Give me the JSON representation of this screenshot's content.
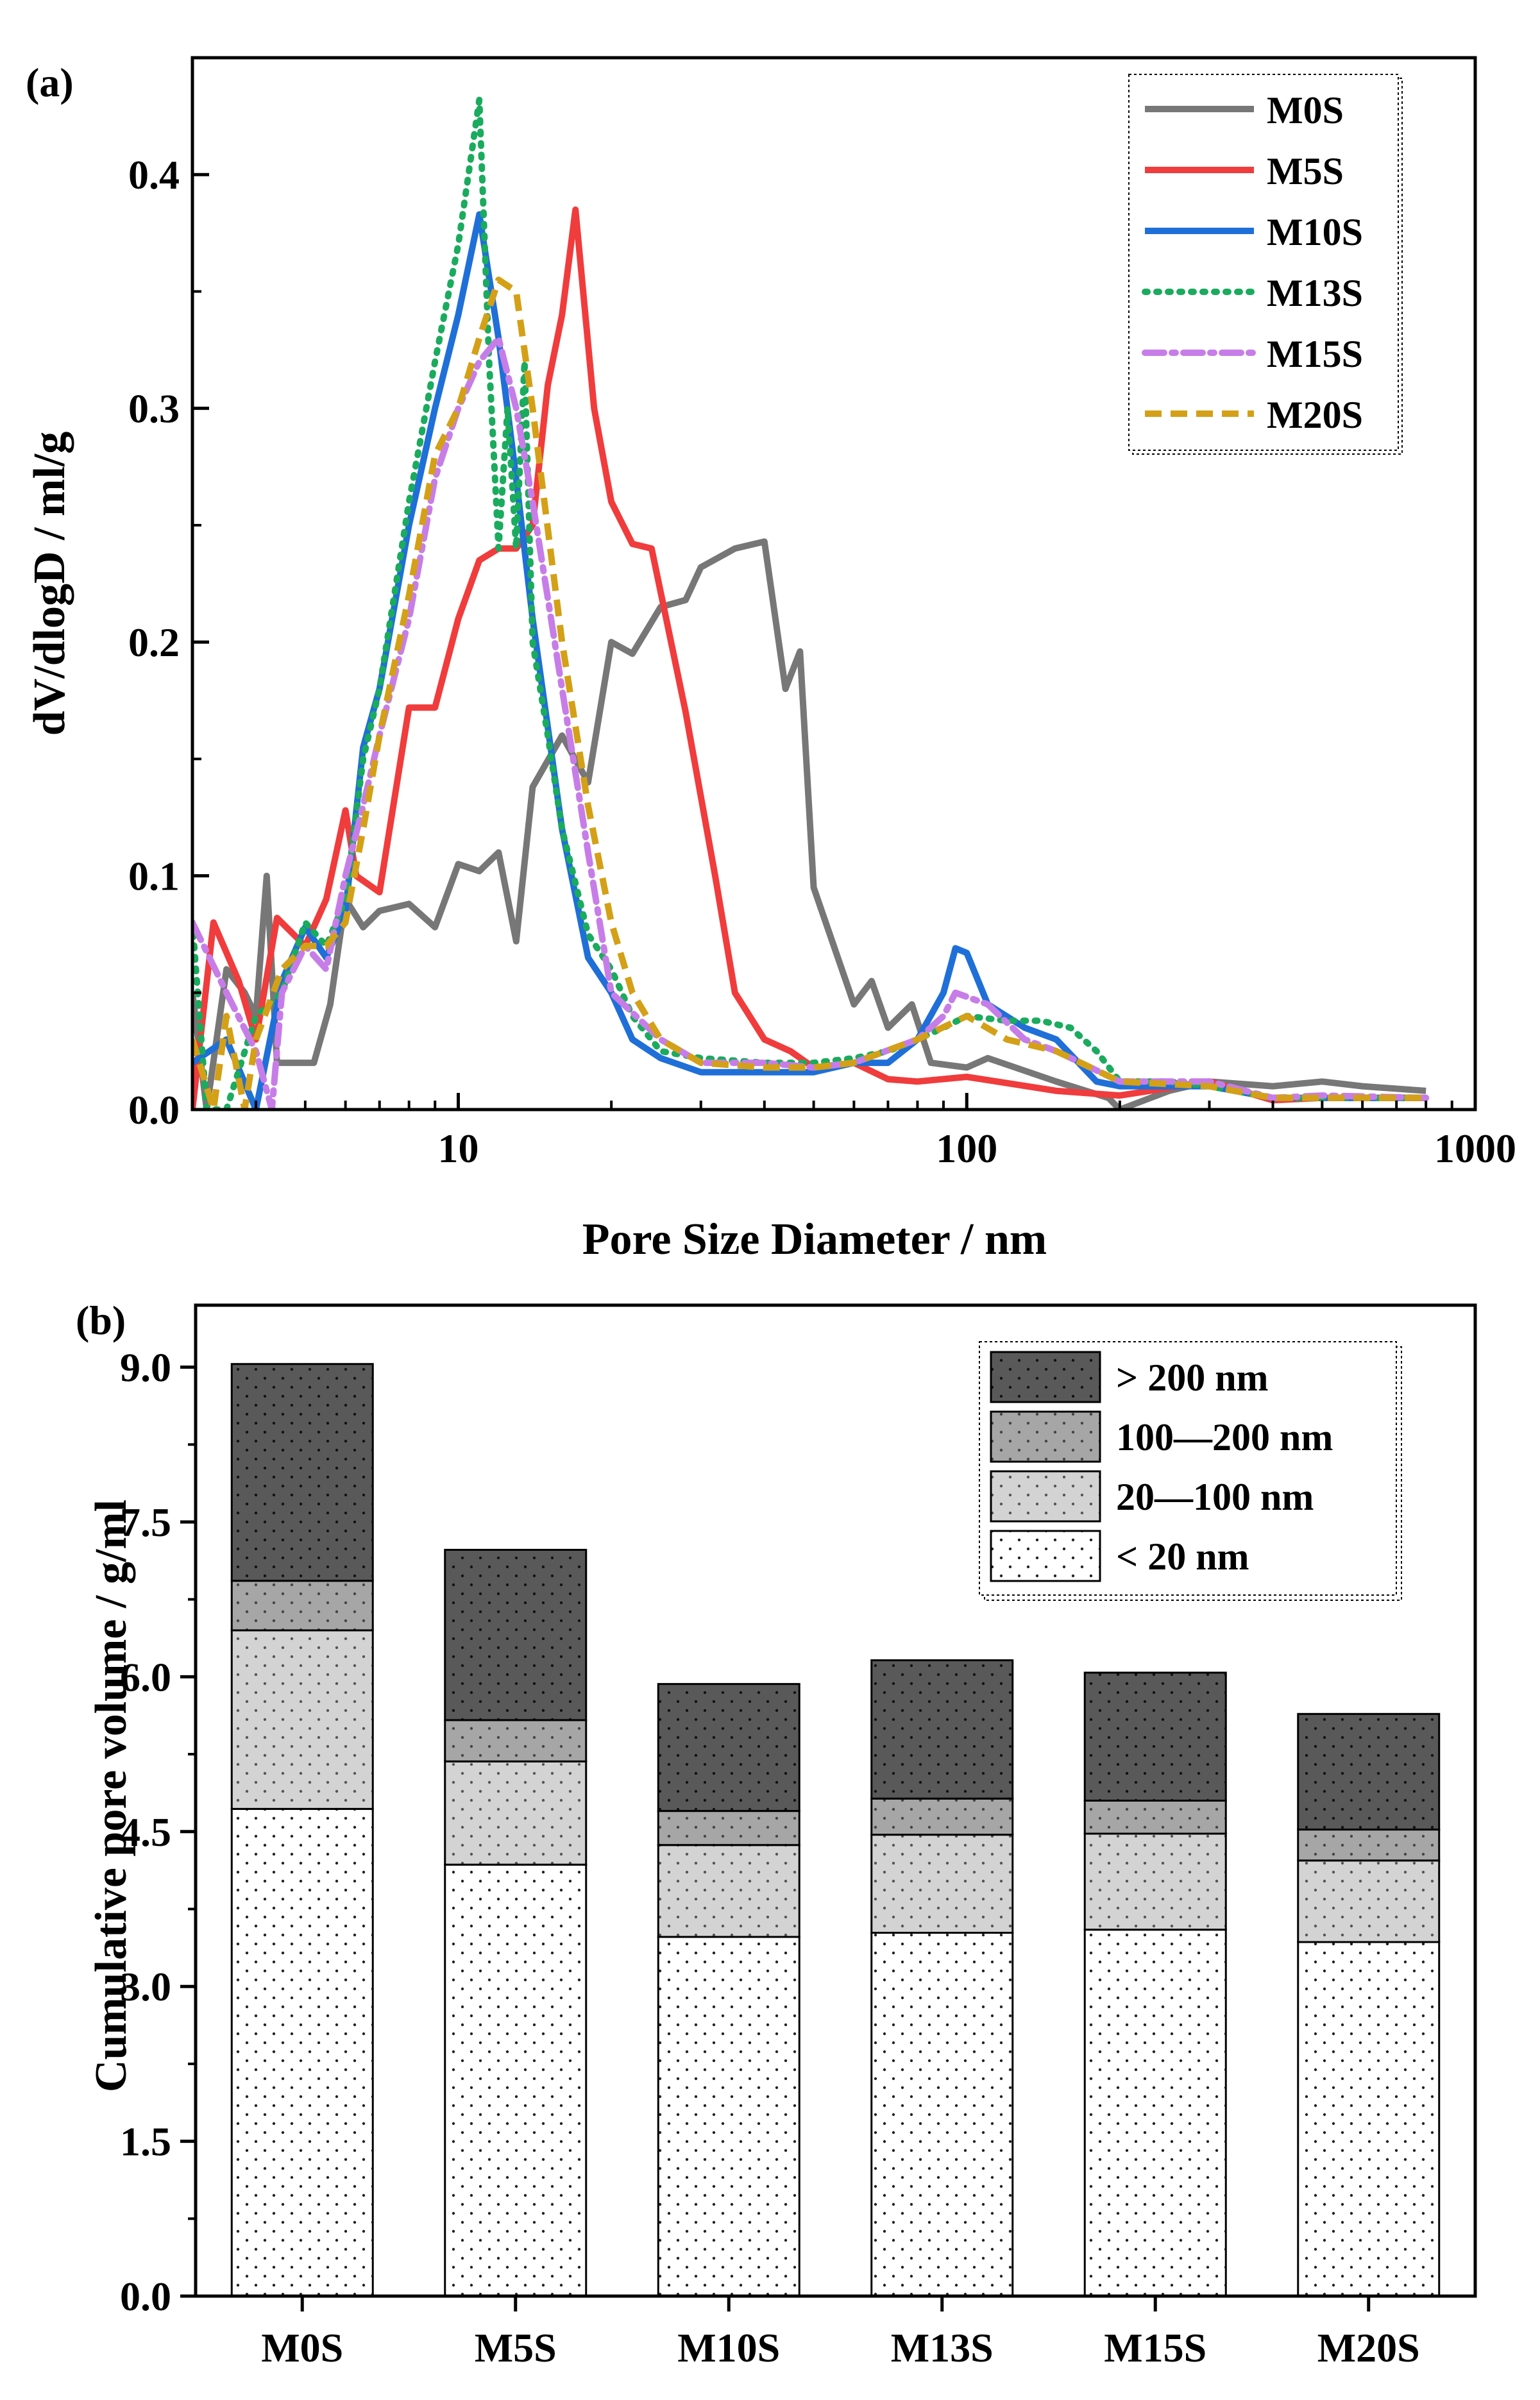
{
  "chart_data": [
    {
      "type": "line",
      "panel_label": "(a)",
      "xscale": "log",
      "xlabel": "Pore Size Diameter / nm",
      "ylabel": "dV/dlogD / ml/g",
      "xlim": [
        3,
        1000
      ],
      "ylim": [
        0,
        0.45
      ],
      "xticks": [
        10,
        100,
        1000
      ],
      "xtick_labels": [
        "10",
        "100",
        "1000"
      ],
      "yticks": [
        0,
        0.1,
        0.2,
        0.3,
        0.4
      ],
      "ytick_labels": [
        "0.0",
        "0.1",
        "0.2",
        "0.3",
        "0.4"
      ],
      "legend_position": "top-right",
      "series": [
        {
          "name": "M0S",
          "color": "#777777",
          "dash": "solid",
          "points": [
            [
              3.0,
              0.05
            ],
            [
              3.2,
              0.0
            ],
            [
              3.5,
              0.06
            ],
            [
              3.8,
              0.05
            ],
            [
              4.0,
              0.04
            ],
            [
              4.2,
              0.1
            ],
            [
              4.4,
              0.02
            ],
            [
              4.8,
              0.02
            ],
            [
              5.2,
              0.02
            ],
            [
              5.6,
              0.045
            ],
            [
              6.0,
              0.09
            ],
            [
              6.5,
              0.078
            ],
            [
              7.0,
              0.085
            ],
            [
              8.0,
              0.088
            ],
            [
              9.0,
              0.078
            ],
            [
              10.0,
              0.105
            ],
            [
              11.0,
              0.102
            ],
            [
              12.0,
              0.11
            ],
            [
              13.0,
              0.072
            ],
            [
              14.0,
              0.138
            ],
            [
              16.0,
              0.16
            ],
            [
              18.0,
              0.14
            ],
            [
              20.0,
              0.2
            ],
            [
              22.0,
              0.195
            ],
            [
              25.0,
              0.215
            ],
            [
              28.0,
              0.218
            ],
            [
              30.0,
              0.232
            ],
            [
              35.0,
              0.24
            ],
            [
              40.0,
              0.243
            ],
            [
              44.0,
              0.18
            ],
            [
              47.0,
              0.196
            ],
            [
              50.0,
              0.095
            ],
            [
              60.0,
              0.045
            ],
            [
              65.0,
              0.055
            ],
            [
              70.0,
              0.035
            ],
            [
              78.0,
              0.045
            ],
            [
              85.0,
              0.02
            ],
            [
              100.0,
              0.018
            ],
            [
              110.0,
              0.022
            ],
            [
              150.0,
              0.012
            ],
            [
              190.0,
              0.005
            ],
            [
              200.0,
              0.0
            ],
            [
              250.0,
              0.008
            ],
            [
              300.0,
              0.012
            ],
            [
              400.0,
              0.01
            ],
            [
              500.0,
              0.012
            ],
            [
              600.0,
              0.01
            ],
            [
              800.0,
              0.008
            ]
          ]
        },
        {
          "name": "M5S",
          "color": "#f03c3c",
          "dash": "solid",
          "points": [
            [
              3.0,
              0.0
            ],
            [
              3.3,
              0.08
            ],
            [
              3.7,
              0.055
            ],
            [
              4.0,
              0.03
            ],
            [
              4.4,
              0.082
            ],
            [
              5.0,
              0.07
            ],
            [
              5.5,
              0.09
            ],
            [
              6.0,
              0.128
            ],
            [
              6.3,
              0.1
            ],
            [
              7.0,
              0.093
            ],
            [
              8.0,
              0.172
            ],
            [
              9.0,
              0.172
            ],
            [
              10.0,
              0.21
            ],
            [
              11.0,
              0.235
            ],
            [
              12.0,
              0.24
            ],
            [
              13.0,
              0.24
            ],
            [
              14.0,
              0.25
            ],
            [
              15.0,
              0.31
            ],
            [
              16.0,
              0.34
            ],
            [
              17.0,
              0.385
            ],
            [
              18.5,
              0.3
            ],
            [
              20.0,
              0.26
            ],
            [
              22.0,
              0.242
            ],
            [
              24.0,
              0.24
            ],
            [
              28.0,
              0.17
            ],
            [
              32.0,
              0.1
            ],
            [
              35.0,
              0.05
            ],
            [
              40.0,
              0.03
            ],
            [
              45.0,
              0.025
            ],
            [
              50.0,
              0.018
            ],
            [
              60.0,
              0.02
            ],
            [
              70.0,
              0.013
            ],
            [
              80.0,
              0.012
            ],
            [
              100.0,
              0.014
            ],
            [
              150.0,
              0.008
            ],
            [
              200.0,
              0.006
            ],
            [
              300.0,
              0.012
            ],
            [
              400.0,
              0.004
            ],
            [
              500.0,
              0.005
            ],
            [
              800.0,
              0.005
            ]
          ]
        },
        {
          "name": "M10S",
          "color": "#1f6fd8",
          "dash": "solid",
          "points": [
            [
              3.0,
              0.02
            ],
            [
              3.5,
              0.03
            ],
            [
              4.0,
              0.0
            ],
            [
              4.5,
              0.055
            ],
            [
              5.0,
              0.078
            ],
            [
              5.5,
              0.065
            ],
            [
              6.0,
              0.085
            ],
            [
              6.5,
              0.155
            ],
            [
              7.0,
              0.18
            ],
            [
              8.0,
              0.25
            ],
            [
              9.0,
              0.3
            ],
            [
              10.0,
              0.34
            ],
            [
              11.0,
              0.383
            ],
            [
              12.0,
              0.33
            ],
            [
              13.0,
              0.27
            ],
            [
              14.0,
              0.21
            ],
            [
              16.0,
              0.12
            ],
            [
              18.0,
              0.065
            ],
            [
              20.0,
              0.05
            ],
            [
              22.0,
              0.03
            ],
            [
              25.0,
              0.022
            ],
            [
              30.0,
              0.016
            ],
            [
              40.0,
              0.016
            ],
            [
              50.0,
              0.016
            ],
            [
              60.0,
              0.02
            ],
            [
              70.0,
              0.02
            ],
            [
              80.0,
              0.03
            ],
            [
              90.0,
              0.05
            ],
            [
              95.0,
              0.069
            ],
            [
              100.0,
              0.067
            ],
            [
              110.0,
              0.045
            ],
            [
              130.0,
              0.035
            ],
            [
              150.0,
              0.03
            ],
            [
              180.0,
              0.012
            ],
            [
              200.0,
              0.01
            ],
            [
              300.0,
              0.01
            ],
            [
              400.0,
              0.005
            ],
            [
              500.0,
              0.005
            ],
            [
              800.0,
              0.005
            ]
          ]
        },
        {
          "name": "M13S",
          "color": "#1aab5e",
          "dash": "dot",
          "points": [
            [
              3.0,
              0.08
            ],
            [
              3.2,
              0.0
            ],
            [
              3.5,
              0.0
            ],
            [
              4.0,
              0.04
            ],
            [
              4.5,
              0.05
            ],
            [
              5.0,
              0.08
            ],
            [
              5.5,
              0.07
            ],
            [
              6.0,
              0.09
            ],
            [
              6.5,
              0.15
            ],
            [
              7.0,
              0.18
            ],
            [
              8.0,
              0.26
            ],
            [
              9.0,
              0.32
            ],
            [
              10.0,
              0.37
            ],
            [
              11.0,
              0.432
            ],
            [
              11.5,
              0.32
            ],
            [
              12.0,
              0.24
            ],
            [
              12.5,
              0.3
            ],
            [
              13.0,
              0.24
            ],
            [
              13.5,
              0.32
            ],
            [
              14.0,
              0.2
            ],
            [
              15.0,
              0.16
            ],
            [
              16.0,
              0.12
            ],
            [
              18.0,
              0.075
            ],
            [
              20.0,
              0.06
            ],
            [
              22.0,
              0.04
            ],
            [
              25.0,
              0.025
            ],
            [
              30.0,
              0.022
            ],
            [
              40.0,
              0.02
            ],
            [
              50.0,
              0.02
            ],
            [
              60.0,
              0.022
            ],
            [
              70.0,
              0.025
            ],
            [
              80.0,
              0.03
            ],
            [
              90.0,
              0.035
            ],
            [
              100.0,
              0.04
            ],
            [
              120.0,
              0.038
            ],
            [
              140.0,
              0.038
            ],
            [
              160.0,
              0.035
            ],
            [
              180.0,
              0.025
            ],
            [
              200.0,
              0.012
            ],
            [
              250.0,
              0.012
            ],
            [
              300.0,
              0.01
            ],
            [
              400.0,
              0.005
            ],
            [
              500.0,
              0.005
            ],
            [
              800.0,
              0.005
            ]
          ]
        },
        {
          "name": "M15S",
          "color": "#c77de8",
          "dash": "dashdot",
          "points": [
            [
              3.0,
              0.08
            ],
            [
              3.5,
              0.05
            ],
            [
              4.0,
              0.025
            ],
            [
              4.3,
              0.0
            ],
            [
              4.5,
              0.05
            ],
            [
              5.0,
              0.07
            ],
            [
              5.5,
              0.06
            ],
            [
              6.0,
              0.1
            ],
            [
              6.5,
              0.13
            ],
            [
              7.0,
              0.16
            ],
            [
              8.0,
              0.21
            ],
            [
              9.0,
              0.27
            ],
            [
              10.0,
              0.3
            ],
            [
              11.0,
              0.32
            ],
            [
              12.0,
              0.33
            ],
            [
              13.0,
              0.3
            ],
            [
              14.0,
              0.26
            ],
            [
              16.0,
              0.18
            ],
            [
              18.0,
              0.11
            ],
            [
              20.0,
              0.05
            ],
            [
              25.0,
              0.03
            ],
            [
              30.0,
              0.02
            ],
            [
              40.0,
              0.02
            ],
            [
              50.0,
              0.018
            ],
            [
              60.0,
              0.02
            ],
            [
              80.0,
              0.03
            ],
            [
              90.0,
              0.04
            ],
            [
              95.0,
              0.05
            ],
            [
              110.0,
              0.045
            ],
            [
              130.0,
              0.03
            ],
            [
              150.0,
              0.025
            ],
            [
              200.0,
              0.012
            ],
            [
              300.0,
              0.012
            ],
            [
              400.0,
              0.005
            ],
            [
              500.0,
              0.006
            ],
            [
              800.0,
              0.005
            ]
          ]
        },
        {
          "name": "M20S",
          "color": "#d4a017",
          "dash": "dash",
          "points": [
            [
              3.0,
              0.03
            ],
            [
              3.3,
              0.0
            ],
            [
              3.5,
              0.04
            ],
            [
              3.8,
              0.0
            ],
            [
              4.0,
              0.03
            ],
            [
              4.5,
              0.06
            ],
            [
              5.0,
              0.07
            ],
            [
              5.5,
              0.07
            ],
            [
              6.0,
              0.08
            ],
            [
              6.5,
              0.12
            ],
            [
              7.0,
              0.16
            ],
            [
              8.0,
              0.22
            ],
            [
              9.0,
              0.28
            ],
            [
              10.0,
              0.3
            ],
            [
              11.0,
              0.33
            ],
            [
              12.0,
              0.355
            ],
            [
              13.0,
              0.35
            ],
            [
              14.0,
              0.3
            ],
            [
              16.0,
              0.2
            ],
            [
              18.0,
              0.13
            ],
            [
              20.0,
              0.08
            ],
            [
              22.0,
              0.05
            ],
            [
              25.0,
              0.03
            ],
            [
              30.0,
              0.02
            ],
            [
              40.0,
              0.018
            ],
            [
              50.0,
              0.018
            ],
            [
              60.0,
              0.02
            ],
            [
              80.0,
              0.03
            ],
            [
              100.0,
              0.04
            ],
            [
              120.0,
              0.03
            ],
            [
              150.0,
              0.025
            ],
            [
              200.0,
              0.012
            ],
            [
              300.0,
              0.01
            ],
            [
              400.0,
              0.005
            ],
            [
              500.0,
              0.005
            ],
            [
              800.0,
              0.005
            ]
          ]
        }
      ]
    },
    {
      "type": "stacked-bar",
      "panel_label": "(b)",
      "xlabel": "",
      "ylabel": "Cumulative pore volume / g/ml",
      "ylim": [
        0,
        9.6
      ],
      "yticks": [
        0,
        1.5,
        3,
        4.5,
        6,
        7.5,
        9
      ],
      "ytick_labels": [
        "0.0",
        "1.5",
        "3.0",
        "4.5",
        "6.0",
        "7.5",
        "9.0"
      ],
      "categories": [
        "M0S",
        "M5S",
        "M10S",
        "M13S",
        "M15S",
        "M20S"
      ],
      "legend_position": "top-right",
      "series": [
        {
          "name": "< 20 nm",
          "color": "#ffffff",
          "values": [
            4.72,
            4.18,
            3.48,
            3.52,
            3.55,
            3.43
          ]
        },
        {
          "name": "20—100 nm",
          "color": "#d3d3d3",
          "values": [
            1.73,
            1.0,
            0.89,
            0.95,
            0.93,
            0.79
          ]
        },
        {
          "name": "100—200 nm",
          "color": "#a6a6a6",
          "values": [
            0.48,
            0.4,
            0.33,
            0.35,
            0.32,
            0.3
          ]
        },
        {
          "name": "> 200 nm",
          "color": "#595959",
          "values": [
            2.1,
            1.65,
            1.23,
            1.34,
            1.24,
            1.12
          ]
        }
      ]
    }
  ]
}
